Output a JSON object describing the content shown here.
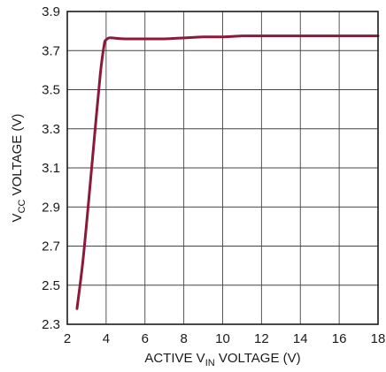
{
  "chart_data": {
    "type": "line",
    "xlabel": {
      "prefix": "ACTIVE V",
      "sub": "IN",
      "suffix": " VOLTAGE (V)"
    },
    "ylabel": {
      "prefix": "V",
      "sub": "CC",
      "suffix": " VOLTAGE (V)"
    },
    "xlim": [
      2,
      18
    ],
    "ylim": [
      2.3,
      3.9
    ],
    "x_ticks": [
      2,
      4,
      6,
      8,
      10,
      12,
      14,
      16,
      18
    ],
    "x_tick_labels": [
      "2",
      "4",
      "6",
      "8",
      "10",
      "12",
      "14",
      "16",
      "18"
    ],
    "y_ticks": [
      2.3,
      2.5,
      2.7,
      2.9,
      3.1,
      3.3,
      3.5,
      3.7,
      3.9
    ],
    "y_tick_labels": [
      "2.3",
      "2.5",
      "2.7",
      "2.9",
      "3.1",
      "3.3",
      "3.5",
      "3.7",
      "3.9"
    ],
    "grid": true,
    "series": [
      {
        "color": "#8b1a3a",
        "x": [
          2.5,
          2.8,
          3.1,
          3.4,
          3.7,
          3.9,
          4.0,
          4.15,
          4.3,
          4.6,
          5.0,
          6.0,
          7.0,
          8.0,
          9.0,
          10.0,
          11.0,
          12.0,
          14.0,
          16.0,
          18.0
        ],
        "y": [
          2.38,
          2.62,
          2.93,
          3.26,
          3.58,
          3.73,
          3.755,
          3.765,
          3.765,
          3.762,
          3.76,
          3.76,
          3.76,
          3.765,
          3.77,
          3.77,
          3.775,
          3.775,
          3.775,
          3.775,
          3.775
        ]
      }
    ]
  }
}
